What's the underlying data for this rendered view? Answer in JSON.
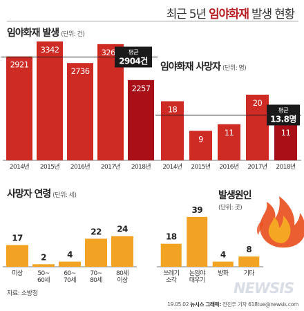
{
  "main_title_pre": "최근 5년",
  "main_title_em": "임야화재",
  "main_title_post": "발생 현황",
  "footer_source": "자료: 소방청",
  "footer_date": "19.05.02",
  "footer_brand": "뉴시스 그래픽:",
  "footer_credit": "전진우 기자 618tue@newsis.com",
  "watermark": "NEWSIS",
  "colors": {
    "bar": "#cf2b25",
    "bar_dark": "#a80f16",
    "orange": "#f2a324",
    "avg_box": "#1a1a1a",
    "text_white": "#ffffff"
  },
  "icons": [
    "flame-icon"
  ],
  "chart_data": [
    {
      "type": "bar",
      "title": "임야화재 발생",
      "unit": "(단위: 건)",
      "categories": [
        "2014년",
        "2015년",
        "2016년",
        "2017년",
        "2018년"
      ],
      "values": [
        2921,
        3342,
        2736,
        3267,
        2257
      ],
      "average_label": "평균",
      "average_value": "2904건",
      "average": 2904,
      "ylim": [
        0,
        3400
      ]
    },
    {
      "type": "bar",
      "title": "임야화재 사망자",
      "unit": "(단위: 명)",
      "categories": [
        "2014년",
        "2015년",
        "2016년",
        "2017년",
        "2018년"
      ],
      "values": [
        18,
        9,
        11,
        20,
        11
      ],
      "average_label": "평균",
      "average_value": "13.8명",
      "average": 13.8,
      "ylim": [
        0,
        24
      ]
    },
    {
      "type": "bar",
      "title": "사망자 연령",
      "unit": "(단위: 세)",
      "categories": [
        "미상",
        "50~\n60세",
        "60~\n70세",
        "70~\n80세",
        "80세\n이상"
      ],
      "values": [
        17,
        2,
        4,
        22,
        24
      ],
      "ylim": [
        0,
        26
      ]
    },
    {
      "type": "bar",
      "title": "발생원인",
      "unit": "(단위: 곳)",
      "categories": [
        "쓰레기\n소각",
        "논임야\n태우기",
        "방화",
        "기타"
      ],
      "values": [
        18,
        39,
        4,
        8
      ],
      "ylim": [
        0,
        40
      ]
    }
  ]
}
